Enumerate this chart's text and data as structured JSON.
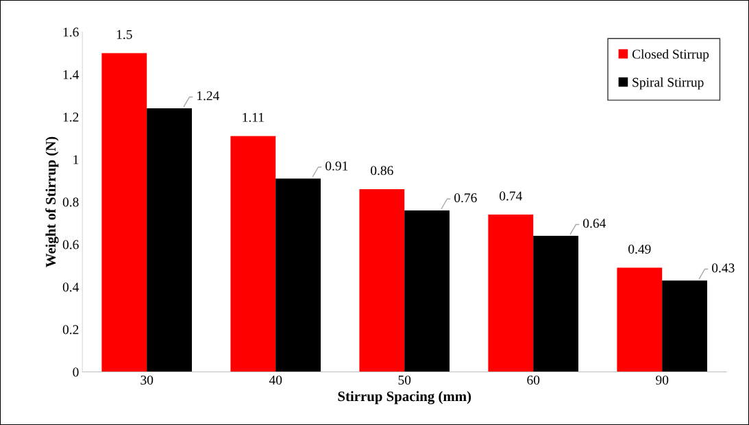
{
  "chart_data": {
    "type": "bar",
    "xlabel": "Stirrup Spacing (mm)",
    "ylabel": "Weight of Stirrup (N)",
    "categories": [
      "30",
      "40",
      "50",
      "60",
      "90"
    ],
    "series": [
      {
        "name": "Closed Stirrup",
        "color": "#ff0000",
        "values": [
          1.5,
          1.11,
          0.86,
          0.74,
          0.49
        ]
      },
      {
        "name": "Spiral Stirrup",
        "color": "#000000",
        "values": [
          1.24,
          0.91,
          0.76,
          0.64,
          0.43
        ]
      }
    ],
    "ylim": [
      0,
      1.6
    ],
    "yticks": [
      0,
      0.2,
      0.4,
      0.6,
      0.8,
      1,
      1.2,
      1.4,
      1.6
    ],
    "data_labels": true,
    "grid": false,
    "legend": "top right"
  }
}
